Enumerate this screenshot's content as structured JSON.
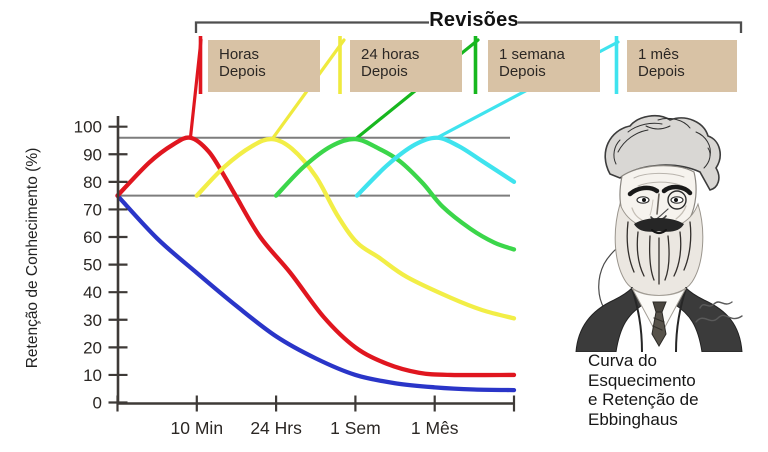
{
  "header": {
    "title": "Revisões"
  },
  "reviews": [
    {
      "lines": [
        "Horas",
        "Depois"
      ],
      "color": "#e0161f"
    },
    {
      "lines": [
        "24 horas",
        "Depois"
      ],
      "color": "#efea3e"
    },
    {
      "lines": [
        "1 semana",
        "Depois"
      ],
      "color": "#17b71f"
    },
    {
      "lines": [
        "1 mês",
        "Depois"
      ],
      "color": "#3fe3ee"
    }
  ],
  "caption": {
    "lines": [
      "Curva do",
      "Esquecimento",
      "e Retenção de",
      "Ebbinghaus"
    ]
  },
  "chart_data": {
    "type": "line",
    "title": "Revisões",
    "ylabel": "Retenção de Conhecimento (%)",
    "xlabel": "",
    "ylim": [
      0,
      100
    ],
    "yticks": [
      0,
      10,
      20,
      30,
      40,
      50,
      60,
      70,
      80,
      90,
      100
    ],
    "xticks": [
      "10 Min",
      "24 Hrs",
      "1 Sem",
      "1 Mês"
    ],
    "grid": false,
    "reference_lines_pct": [
      96,
      75
    ],
    "x_axis_note": "x in axis units: 0=start, 1=10 Min, 2=24 Hrs, 3=1 Sem, 4=1 Mês, 5=end",
    "series": [
      {
        "id": "original-forgetting-curve",
        "color": "#2a35c8",
        "points": [
          [
            0,
            75
          ],
          [
            0.5,
            59.5
          ],
          [
            1,
            47
          ],
          [
            1.5,
            35
          ],
          [
            2,
            24
          ],
          [
            2.5,
            16
          ],
          [
            3,
            10
          ],
          [
            3.5,
            7
          ],
          [
            4,
            5.5
          ],
          [
            4.5,
            4.7
          ],
          [
            5,
            4.5
          ]
        ]
      },
      {
        "id": "review-1-hours-later",
        "color": "#e0161f",
        "points": [
          [
            0,
            75
          ],
          [
            0.4,
            87
          ],
          [
            0.7,
            93.5
          ],
          [
            0.92,
            96
          ],
          [
            1.15,
            91
          ],
          [
            1.35,
            82
          ],
          [
            1.49,
            75
          ],
          [
            1.8,
            60
          ],
          [
            2.18,
            47
          ],
          [
            2.6,
            31
          ],
          [
            3,
            20
          ],
          [
            3.4,
            14
          ],
          [
            3.8,
            10.8
          ],
          [
            4.2,
            10
          ],
          [
            5,
            10
          ]
        ]
      },
      {
        "id": "review-2-24-hours-later",
        "color": "#f2ee46",
        "points": [
          [
            1,
            75
          ],
          [
            1.35,
            85.5
          ],
          [
            1.7,
            93
          ],
          [
            1.95,
            95.5
          ],
          [
            2.2,
            92
          ],
          [
            2.5,
            82
          ],
          [
            2.77,
            68
          ],
          [
            3.02,
            58
          ],
          [
            3.3,
            52.5
          ],
          [
            3.65,
            45.5
          ],
          [
            4.2,
            38
          ],
          [
            4.6,
            33.5
          ],
          [
            5,
            30.5
          ]
        ]
      },
      {
        "id": "review-3-1-week-later",
        "color": "#3bd64a",
        "points": [
          [
            2,
            75
          ],
          [
            2.35,
            85.5
          ],
          [
            2.7,
            93
          ],
          [
            3,
            95.5
          ],
          [
            3.3,
            92
          ],
          [
            3.56,
            87.5
          ],
          [
            3.85,
            79.5
          ],
          [
            4.1,
            71
          ],
          [
            4.45,
            63
          ],
          [
            4.75,
            58
          ],
          [
            5,
            55.5
          ]
        ]
      },
      {
        "id": "review-4-1-month-later",
        "color": "#3fe3ee",
        "points": [
          [
            3.02,
            75
          ],
          [
            3.4,
            86
          ],
          [
            3.75,
            93.5
          ],
          [
            4.03,
            96
          ],
          [
            4.3,
            93
          ],
          [
            4.6,
            87.5
          ],
          [
            5,
            80
          ]
        ]
      }
    ]
  },
  "colors": {
    "box_bg": "#d8c2a5",
    "axis": "#3e3a37",
    "tick_text": "#2b2724",
    "ref_line": "#7d7d7d",
    "bracket": "#4e4e4e"
  }
}
